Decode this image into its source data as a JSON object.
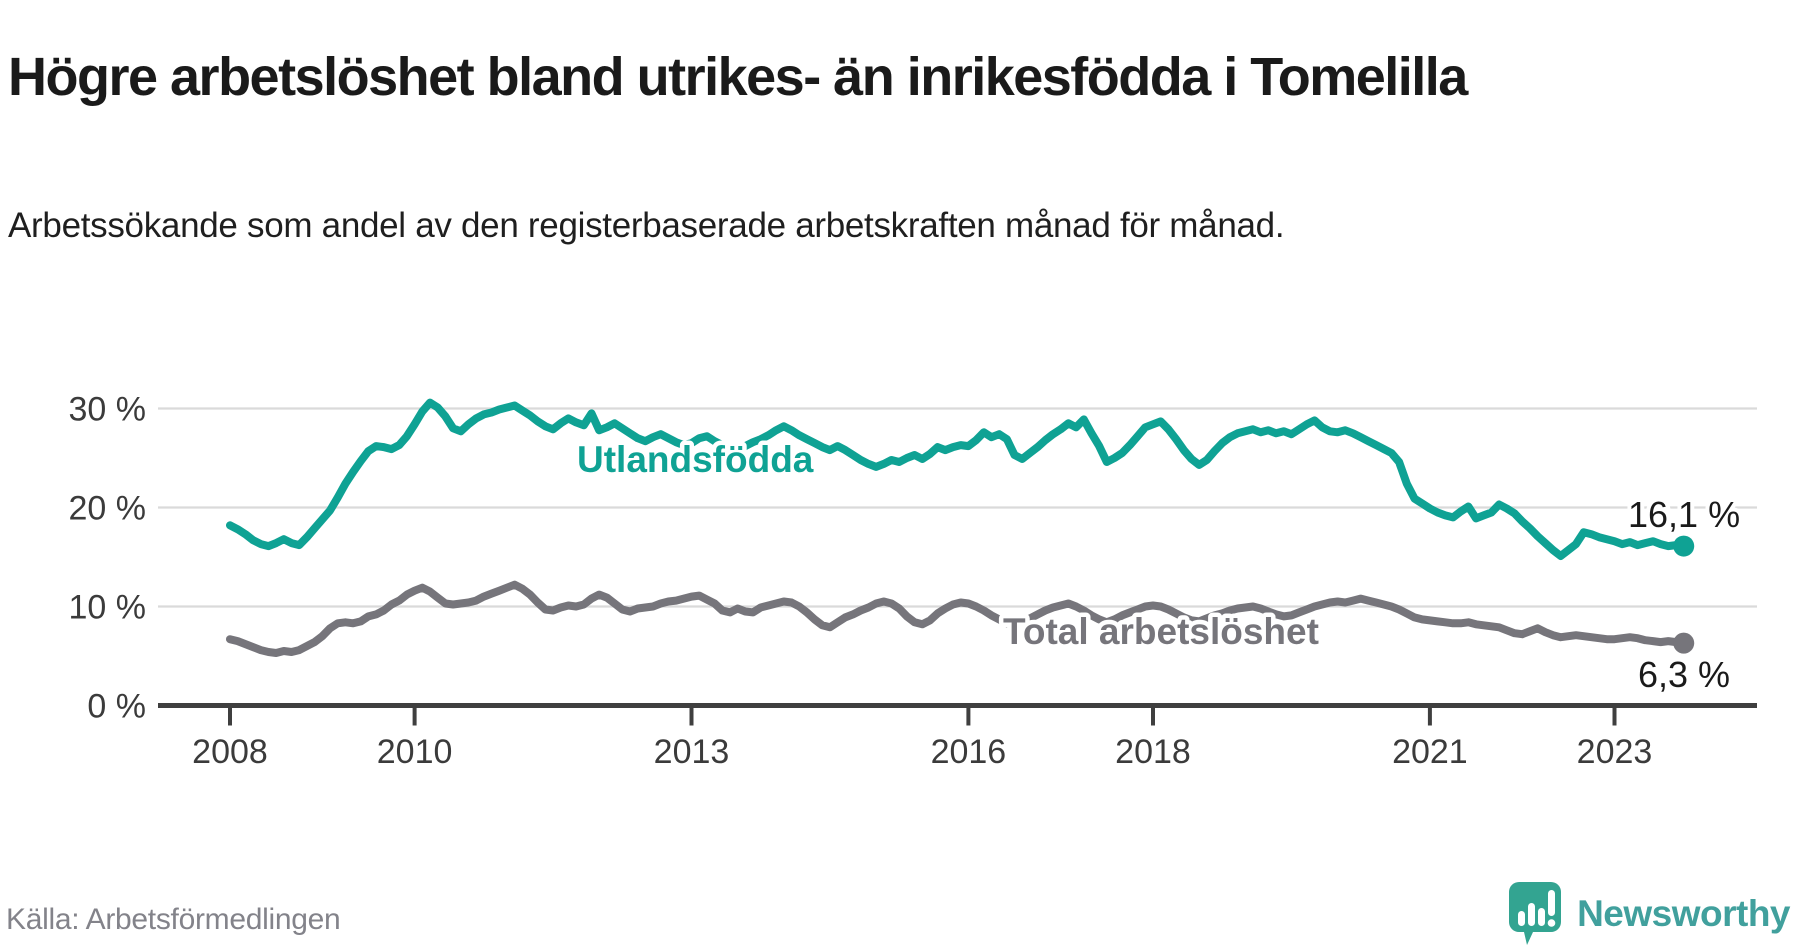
{
  "title": "Högre arbetslöshet bland utrikes- än inrikesfödda i Tomelilla",
  "subtitle": "Arbetssökande som andel av den registerbaserade arbetskraften månad för månad.",
  "source": "Källa: Arbetsförmedlingen",
  "brand": {
    "name": "Newsworthy",
    "text_color": "#41a09d",
    "bubble_color": "#33a491"
  },
  "colors": {
    "grid": "#dadada",
    "axis": "#3f3f3f",
    "tick_label": "#3b3b3b",
    "value_label": "#1a1a1a",
    "halo": "#ffffff"
  },
  "chart_data": {
    "type": "line",
    "unit": "%",
    "x_start_year": 2008,
    "x_end": "2023-10",
    "points_per_year": 12,
    "x_ticks": [
      2008,
      2010,
      2013,
      2016,
      2018,
      2021,
      2023
    ],
    "y_ticks": [
      {
        "value": 30,
        "label": "30 %"
      },
      {
        "value": 20,
        "label": "20 %"
      },
      {
        "value": 10,
        "label": "10 %"
      },
      {
        "value": 0,
        "label": "0 %"
      }
    ],
    "ylim": [
      0,
      31.5
    ],
    "grid": true,
    "series": [
      {
        "name": "Utlandsfödda",
        "color": "#0fa294",
        "end_label": "16,1 %",
        "end_value": 16.1,
        "values": [
          18.2,
          17.8,
          17.3,
          16.7,
          16.3,
          16.1,
          16.4,
          16.8,
          16.4,
          16.2,
          17.0,
          17.9,
          18.8,
          19.7,
          21.0,
          22.4,
          23.6,
          24.7,
          25.7,
          26.2,
          26.1,
          25.9,
          26.3,
          27.2,
          28.4,
          29.7,
          30.6,
          30.1,
          29.2,
          28.0,
          27.7,
          28.4,
          29.0,
          29.4,
          29.6,
          29.9,
          30.1,
          30.3,
          29.8,
          29.3,
          28.7,
          28.2,
          27.9,
          28.5,
          29.0,
          28.6,
          28.3,
          29.5,
          27.8,
          28.1,
          28.5,
          28.0,
          27.5,
          27.0,
          26.7,
          27.1,
          27.4,
          27.0,
          26.6,
          26.3,
          26.5,
          27.0,
          27.2,
          26.7,
          26.3,
          25.9,
          25.7,
          26.2,
          26.6,
          26.9,
          27.3,
          27.8,
          28.2,
          27.8,
          27.3,
          26.9,
          26.5,
          26.1,
          25.8,
          26.2,
          25.8,
          25.3,
          24.8,
          24.4,
          24.1,
          24.4,
          24.8,
          24.6,
          25.0,
          25.3,
          24.9,
          25.4,
          26.1,
          25.8,
          26.1,
          26.3,
          26.2,
          26.8,
          27.6,
          27.1,
          27.4,
          26.9,
          25.3,
          24.9,
          25.5,
          26.1,
          26.8,
          27.4,
          27.9,
          28.5,
          28.1,
          28.9,
          27.5,
          26.2,
          24.6,
          25.0,
          25.5,
          26.3,
          27.2,
          28.1,
          28.4,
          28.7,
          27.9,
          26.9,
          25.8,
          24.9,
          24.3,
          24.8,
          25.7,
          26.5,
          27.1,
          27.5,
          27.7,
          27.9,
          27.6,
          27.8,
          27.5,
          27.7,
          27.4,
          27.9,
          28.4,
          28.8,
          28.1,
          27.7,
          27.6,
          27.8,
          27.5,
          27.1,
          26.7,
          26.3,
          25.9,
          25.5,
          24.6,
          22.4,
          20.9,
          20.4,
          19.9,
          19.5,
          19.2,
          19.0,
          19.6,
          20.1,
          18.9,
          19.2,
          19.5,
          20.3,
          19.9,
          19.4,
          18.6,
          17.9,
          17.1,
          16.4,
          15.7,
          15.1,
          15.7,
          16.3,
          17.5,
          17.3,
          17.0,
          16.8,
          16.6,
          16.3,
          16.5,
          16.2,
          16.4,
          16.6,
          16.3,
          16.1,
          16.2,
          16.1
        ]
      },
      {
        "name": "Total arbetslöshet",
        "color": "#76757b",
        "end_label": "6,3 %",
        "end_value": 6.3,
        "values": [
          6.7,
          6.5,
          6.2,
          5.9,
          5.6,
          5.4,
          5.3,
          5.5,
          5.4,
          5.6,
          6.0,
          6.4,
          7.0,
          7.8,
          8.3,
          8.4,
          8.3,
          8.5,
          9.0,
          9.2,
          9.6,
          10.2,
          10.6,
          11.2,
          11.6,
          11.9,
          11.5,
          10.9,
          10.3,
          10.2,
          10.3,
          10.4,
          10.6,
          11.0,
          11.3,
          11.6,
          11.9,
          12.2,
          11.8,
          11.2,
          10.4,
          9.7,
          9.6,
          9.9,
          10.1,
          10.0,
          10.2,
          10.8,
          11.2,
          10.9,
          10.3,
          9.7,
          9.5,
          9.8,
          9.9,
          10.0,
          10.3,
          10.5,
          10.6,
          10.8,
          11.0,
          11.1,
          10.7,
          10.3,
          9.6,
          9.4,
          9.8,
          9.5,
          9.4,
          9.9,
          10.1,
          10.3,
          10.5,
          10.4,
          10.0,
          9.4,
          8.7,
          8.1,
          7.9,
          8.4,
          8.9,
          9.2,
          9.6,
          9.9,
          10.3,
          10.5,
          10.3,
          9.8,
          9.0,
          8.4,
          8.2,
          8.6,
          9.3,
          9.8,
          10.2,
          10.4,
          10.3,
          10.0,
          9.6,
          9.1,
          8.7,
          8.3,
          8.1,
          8.4,
          8.8,
          9.2,
          9.6,
          9.9,
          10.1,
          10.3,
          10.0,
          9.6,
          9.1,
          8.7,
          8.4,
          8.7,
          9.1,
          9.4,
          9.7,
          10.0,
          10.1,
          10.0,
          9.7,
          9.3,
          8.9,
          8.6,
          8.5,
          8.8,
          9.1,
          9.3,
          9.6,
          9.8,
          9.9,
          10.0,
          9.8,
          9.5,
          9.2,
          9.0,
          9.1,
          9.4,
          9.7,
          10.0,
          10.2,
          10.4,
          10.5,
          10.4,
          10.6,
          10.8,
          10.6,
          10.4,
          10.2,
          10.0,
          9.7,
          9.3,
          8.9,
          8.7,
          8.6,
          8.5,
          8.4,
          8.3,
          8.3,
          8.4,
          8.2,
          8.1,
          8.0,
          7.9,
          7.6,
          7.3,
          7.2,
          7.5,
          7.8,
          7.4,
          7.1,
          6.9,
          7.0,
          7.1,
          7.0,
          6.9,
          6.8,
          6.7,
          6.7,
          6.8,
          6.9,
          6.8,
          6.6,
          6.5,
          6.4,
          6.5,
          6.4,
          6.3
        ]
      }
    ]
  }
}
